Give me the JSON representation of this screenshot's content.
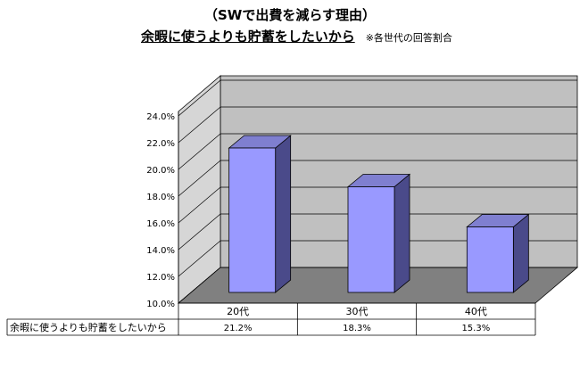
{
  "header": {
    "title": "（SWで出費を減らす理由）",
    "subtitle": "余暇に使うよりも貯蓄をしたいから",
    "note": "※各世代の回答割合"
  },
  "chart_data": {
    "type": "bar",
    "categories": [
      "20代",
      "30代",
      "40代"
    ],
    "series": [
      {
        "name": "余暇に使うよりも貯蓄をしたいから",
        "values": [
          21.2,
          18.3,
          15.3
        ]
      }
    ],
    "value_labels": [
      "21.2%",
      "18.3%",
      "15.3%"
    ],
    "yticks": [
      "10.0%",
      "12.0%",
      "14.0%",
      "16.0%",
      "18.0%",
      "20.0%",
      "22.0%",
      "24.0%"
    ],
    "ylim": [
      10,
      24
    ],
    "grid": true,
    "legend": "data-table-below",
    "colors": {
      "bar_front": "#9999ff",
      "bar_side": "#4a4a8a",
      "bar_top": "#7f7fd0",
      "wall": "#c0c0c0",
      "floor": "#808080"
    }
  }
}
